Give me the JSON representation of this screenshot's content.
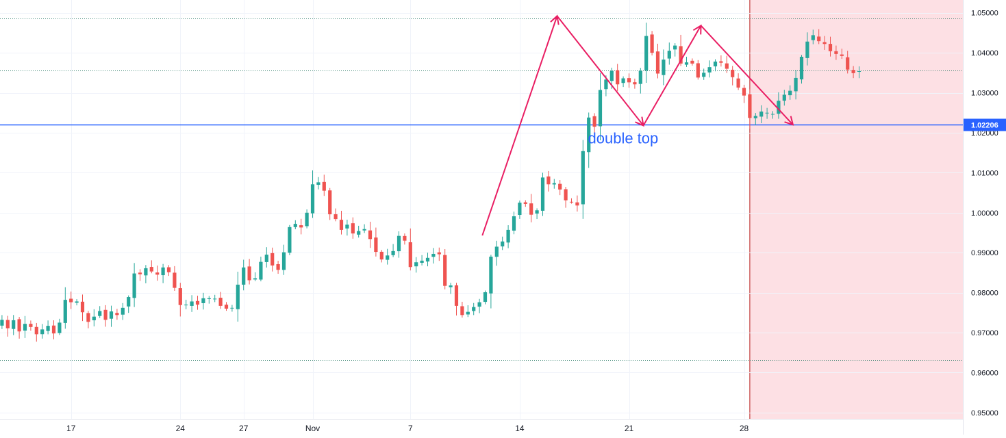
{
  "chart_data": {
    "type": "candlestick",
    "instrument": "",
    "y_axis": {
      "ticks": [
        "1.05000",
        "1.04000",
        "1.03000",
        "1.02000",
        "1.01000",
        "1.00000",
        "0.99000",
        "0.98000",
        "0.97000",
        "0.96000",
        "0.95000"
      ],
      "range": [
        0.9445,
        1.0532
      ]
    },
    "x_axis": {
      "ticks": [
        {
          "label": "17",
          "bar": 13
        },
        {
          "label": "24",
          "bar": 32
        },
        {
          "label": "27",
          "bar": 43
        },
        {
          "label": "Nov",
          "bar": 55
        },
        {
          "label": "7",
          "bar": 72
        },
        {
          "label": "14",
          "bar": 91
        },
        {
          "label": "21",
          "bar": 110
        },
        {
          "label": "28",
          "bar": 130
        }
      ]
    },
    "price_line": {
      "value": 1.02206,
      "label": "1.02206",
      "color": "#2962ff"
    },
    "horizontal_levels": [
      1.0485,
      1.0355,
      0.9632
    ],
    "annotation": {
      "text": "double top",
      "anchor_bar": 110,
      "anchor_price": 1.0185,
      "color": "#2962ff"
    },
    "pattern_polyline": {
      "color": "#e91e63",
      "points": [
        {
          "bar": 84.5,
          "price": 0.9943
        },
        {
          "bar": 97.5,
          "price": 1.0492
        },
        {
          "bar": 112.5,
          "price": 1.0218
        },
        {
          "bar": 122.5,
          "price": 1.0468
        },
        {
          "bar": 138.5,
          "price": 1.022
        }
      ]
    },
    "forecast_zone": {
      "from_bar": 131,
      "color": "#fde0e4",
      "divider_color": "#b71c1c"
    },
    "colors": {
      "up": "#26a69a",
      "down": "#ef5350",
      "grid": "#f0f3fa",
      "axis_text": "#131722"
    },
    "closes": [
      0.9717,
      0.9732,
      0.9711,
      0.9731,
      0.9703,
      0.9722,
      0.9714,
      0.9696,
      0.9708,
      0.9717,
      0.9698,
      0.9725,
      0.9782,
      0.9776,
      0.9778,
      0.9751,
      0.9727,
      0.974,
      0.9754,
      0.9732,
      0.9753,
      0.9744,
      0.9762,
      0.9789,
      0.9848,
      0.9846,
      0.9861,
      0.9853,
      0.9845,
      0.9863,
      0.9851,
      0.9812,
      0.9769,
      0.977,
      0.9778,
      0.977,
      0.9786,
      0.9786,
      0.9785,
      0.9767,
      0.976,
      0.9762,
      0.982,
      0.9863,
      0.9831,
      0.9836,
      0.9877,
      0.9895,
      0.9868,
      0.9857,
      0.9901,
      0.9964,
      0.9972,
      0.9963,
      1.0,
      1.0071,
      1.0076,
      1.0055,
      0.9996,
      0.9984,
      0.9957,
      0.997,
      0.9948,
      0.9954,
      0.9959,
      0.9934,
      0.9902,
      0.9883,
      0.9893,
      0.9904,
      0.9942,
      0.993,
      0.9864,
      0.9876,
      0.988,
      0.9887,
      0.9897,
      0.9896,
      0.9817,
      0.9818,
      0.9767,
      0.9744,
      0.9752,
      0.9764,
      0.9776,
      0.9801,
      0.989,
      0.9915,
      0.9928,
      0.9957,
      0.9991,
      1.0025,
      1.0022,
      0.9995,
      1.0006,
      1.0088,
      1.0071,
      1.0074,
      1.0058,
      1.0031,
      1.0027,
      1.0018,
      1.0154,
      1.0238,
      1.0215,
      1.0307,
      1.0333,
      1.0355,
      1.0321,
      1.0336,
      1.0326,
      1.0321,
      1.0355,
      1.0442,
      1.04,
      1.0348,
      1.0383,
      1.0405,
      1.0418,
      1.0373,
      1.0376,
      1.0373,
      1.0338,
      1.035,
      1.0364,
      1.0378,
      1.0375,
      1.036,
      1.0339,
      1.0313,
      1.0293,
      1.0237,
      1.0242,
      1.0253,
      1.025,
      1.0247,
      1.028,
      1.0295,
      1.0305,
      1.0337,
      1.039,
      1.0428,
      1.0444,
      1.0429,
      1.0422,
      1.0404,
      1.0397,
      1.0392,
      1.0358,
      1.0349,
      1.0354
    ]
  }
}
